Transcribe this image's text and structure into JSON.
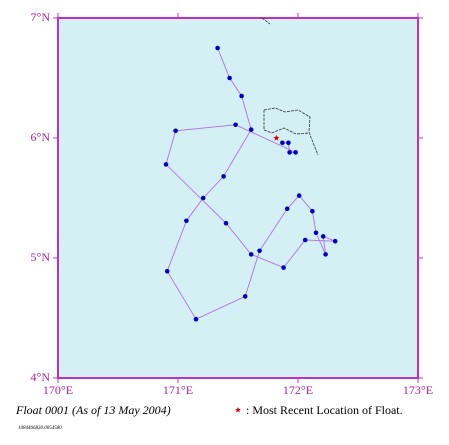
{
  "chart_data": {
    "type": "line",
    "title": "Float 0001 (As of 13 May 2004)",
    "footnote": "1084466830.0054580",
    "x": [
      171.33,
      171.43,
      171.53,
      171.61,
      171.38,
      171.21,
      171.07,
      170.91,
      171.15,
      171.56,
      171.68,
      171.91,
      172.01,
      172.12,
      172.15,
      172.23,
      172.21,
      172.31,
      172.06,
      171.88,
      171.61,
      171.4,
      170.9,
      170.98,
      171.48,
      171.98,
      171.93,
      171.92,
      171.87
    ],
    "series": [
      {
        "color": "#b070e0",
        "marker_color": "#0000c8",
        "values": [
          6.75,
          6.5,
          6.35,
          6.07,
          5.68,
          5.5,
          5.31,
          4.89,
          4.49,
          4.68,
          5.06,
          5.41,
          5.52,
          5.39,
          5.21,
          5.03,
          5.18,
          5.14,
          5.15,
          4.92,
          5.03,
          5.29,
          5.78,
          6.06,
          6.11,
          5.88,
          5.88,
          5.96,
          5.96
        ]
      }
    ],
    "latest": {
      "x": 171.82,
      "y": 6.0,
      "color": "#dd0000",
      "label": ": Most Recent Location of Float."
    },
    "xlim": [
      170,
      173
    ],
    "ylim": [
      4,
      7
    ],
    "xticks": [
      {
        "value": 170,
        "label": "170°E"
      },
      {
        "value": 171,
        "label": "171°E"
      },
      {
        "value": 172,
        "label": "172°E"
      },
      {
        "value": 173,
        "label": "173°E"
      }
    ],
    "yticks": [
      {
        "value": 4,
        "label": "4°N"
      },
      {
        "value": 5,
        "label": "5°N"
      },
      {
        "value": 6,
        "label": "6°N"
      },
      {
        "value": 7,
        "label": "7°N"
      }
    ],
    "background": "#d4f0f5",
    "frame_color": "#c030c0"
  }
}
